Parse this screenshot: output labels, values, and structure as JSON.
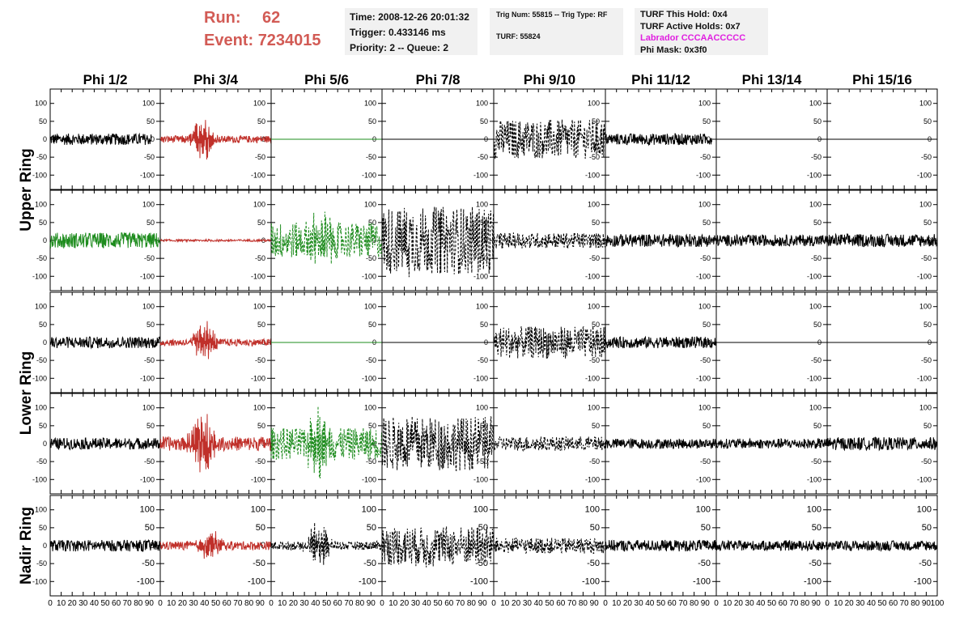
{
  "header": {
    "run_label": "Run:",
    "run_value": "62",
    "event_label": "Event:",
    "event_value": "7234015"
  },
  "info": {
    "time": "Time: 2008-12-26 20:01:32",
    "trigger": "Trigger: 0.433146 ms",
    "priority": "Priority: 2 -- Queue: 2",
    "trig": "Trig Num: 55815 -- Trig Type: RF",
    "turf": "TURF: 55824",
    "hold": "TURF This Hold: 0x4",
    "active_holds": "TURF Active Holds: 0x7",
    "labrador": "Labrador CCCAACCCCC",
    "phi_mask": "Phi Mask: 0x3f0"
  },
  "colors": {
    "black": "#000000",
    "red": "#c0302a",
    "green": "#1e8c1e",
    "info_bg": "#f1f1f1",
    "run_text": "#d25b55",
    "labrador_text": "#e020e0"
  },
  "chart_data": {
    "type": "line",
    "title": "",
    "columns": [
      "Phi 1/2",
      "Phi 3/4",
      "Phi 5/6",
      "Phi 7/8",
      "Phi 9/10",
      "Phi 11/12",
      "Phi 13/14",
      "Phi 15/16"
    ],
    "row_groups": [
      {
        "label": "Upper Ring",
        "rows": [
          0,
          1
        ]
      },
      {
        "label": "Lower Ring",
        "rows": [
          2,
          3
        ]
      },
      {
        "label": "Nadir Ring",
        "rows": [
          4
        ]
      }
    ],
    "xlim": [
      0,
      100
    ],
    "ylim": [
      -140,
      140
    ],
    "x_ticks": [
      0,
      10,
      20,
      30,
      40,
      50,
      60,
      70,
      80,
      90,
      100
    ],
    "x_tick_labels": [
      "0",
      "10",
      "20",
      "30",
      "40",
      "50",
      "60",
      "70",
      "80",
      "90",
      "100"
    ],
    "y_ticks": [
      100,
      50,
      0,
      -50,
      -100
    ],
    "y_tick_labels": [
      "100",
      "50",
      "0",
      "-50",
      "-100"
    ],
    "panels": [
      [
        {
          "color": "black",
          "style": "solid",
          "amp": 16,
          "burst": 0,
          "center": 45,
          "extent": 92
        },
        {
          "color": "red",
          "style": "solid",
          "amp": 10,
          "burst": 60,
          "center": 38,
          "extent": 100
        },
        {
          "color": "green",
          "style": "solid",
          "amp": 0,
          "burst": 0,
          "center": 50,
          "extent": 100
        },
        {
          "color": "black",
          "style": "solid",
          "amp": 0,
          "burst": 0,
          "center": 50,
          "extent": 100
        },
        {
          "color": "black",
          "style": "dashed",
          "amp": 55,
          "burst": 0,
          "center": 50,
          "extent": 100
        },
        {
          "color": "black",
          "style": "solid",
          "amp": 16,
          "burst": 0,
          "center": 50,
          "extent": 96
        },
        {
          "color": "black",
          "style": "solid",
          "amp": 0,
          "burst": 0,
          "center": 50,
          "extent": 100
        },
        {
          "color": "black",
          "style": "solid",
          "amp": 0,
          "burst": 0,
          "center": 50,
          "extent": 100
        }
      ],
      [
        {
          "color": "green",
          "style": "solid",
          "amp": 22,
          "burst": 0,
          "center": 45,
          "extent": 100
        },
        {
          "color": "red",
          "style": "solid",
          "amp": 3,
          "burst": 0,
          "center": 45,
          "extent": 100
        },
        {
          "color": "green",
          "style": "dashed",
          "amp": 50,
          "burst": 60,
          "center": 45,
          "extent": 100
        },
        {
          "color": "black",
          "style": "dashed",
          "amp": 95,
          "burst": 20,
          "center": 25,
          "extent": 100
        },
        {
          "color": "black",
          "style": "dashed",
          "amp": 22,
          "burst": 0,
          "center": 45,
          "extent": 100
        },
        {
          "color": "black",
          "style": "solid",
          "amp": 18,
          "burst": 0,
          "center": 45,
          "extent": 100
        },
        {
          "color": "black",
          "style": "solid",
          "amp": 16,
          "burst": 0,
          "center": 45,
          "extent": 100
        },
        {
          "color": "black",
          "style": "solid",
          "amp": 18,
          "burst": 0,
          "center": 45,
          "extent": 100
        }
      ],
      [
        {
          "color": "black",
          "style": "solid",
          "amp": 16,
          "burst": 0,
          "center": 45,
          "extent": 100
        },
        {
          "color": "red",
          "style": "solid",
          "amp": 10,
          "burst": 55,
          "center": 40,
          "extent": 100
        },
        {
          "color": "green",
          "style": "solid",
          "amp": 0,
          "burst": 0,
          "center": 50,
          "extent": 100
        },
        {
          "color": "black",
          "style": "solid",
          "amp": 0,
          "burst": 0,
          "center": 50,
          "extent": 100
        },
        {
          "color": "black",
          "style": "dashed",
          "amp": 45,
          "burst": 0,
          "center": 50,
          "extent": 100
        },
        {
          "color": "black",
          "style": "solid",
          "amp": 16,
          "burst": 0,
          "center": 45,
          "extent": 100
        },
        {
          "color": "black",
          "style": "solid",
          "amp": 0,
          "burst": 0,
          "center": 50,
          "extent": 100
        },
        {
          "color": "black",
          "style": "solid",
          "amp": 0,
          "burst": 0,
          "center": 50,
          "extent": 100
        }
      ],
      [
        {
          "color": "black",
          "style": "solid",
          "amp": 16,
          "burst": 0,
          "center": 45,
          "extent": 100
        },
        {
          "color": "red",
          "style": "solid",
          "amp": 20,
          "burst": 85,
          "center": 38,
          "extent": 100
        },
        {
          "color": "green",
          "style": "dashed",
          "amp": 45,
          "burst": 75,
          "center": 42,
          "extent": 100
        },
        {
          "color": "black",
          "style": "dashed",
          "amp": 75,
          "burst": 15,
          "center": 20,
          "extent": 100
        },
        {
          "color": "black",
          "style": "dashed",
          "amp": 20,
          "burst": 0,
          "center": 45,
          "extent": 100
        },
        {
          "color": "black",
          "style": "solid",
          "amp": 14,
          "burst": 0,
          "center": 45,
          "extent": 100
        },
        {
          "color": "black",
          "style": "solid",
          "amp": 14,
          "burst": 0,
          "center": 45,
          "extent": 100
        },
        {
          "color": "black",
          "style": "solid",
          "amp": 18,
          "burst": 0,
          "center": 45,
          "extent": 100
        }
      ],
      [
        {
          "color": "black",
          "style": "solid",
          "amp": 16,
          "burst": 0,
          "center": 45,
          "extent": 100
        },
        {
          "color": "red",
          "style": "solid",
          "amp": 12,
          "burst": 40,
          "center": 45,
          "extent": 100
        },
        {
          "color": "black",
          "style": "dashed",
          "amp": 12,
          "burst": 65,
          "center": 43,
          "extent": 100
        },
        {
          "color": "black",
          "style": "dashed",
          "amp": 55,
          "burst": 15,
          "center": 40,
          "extent": 100
        },
        {
          "color": "black",
          "style": "dashed",
          "amp": 22,
          "burst": 0,
          "center": 45,
          "extent": 100
        },
        {
          "color": "black",
          "style": "solid",
          "amp": 16,
          "burst": 0,
          "center": 45,
          "extent": 100
        },
        {
          "color": "black",
          "style": "solid",
          "amp": 14,
          "burst": 0,
          "center": 45,
          "extent": 100
        },
        {
          "color": "black",
          "style": "solid",
          "amp": 14,
          "burst": 0,
          "center": 45,
          "extent": 100
        }
      ]
    ]
  }
}
